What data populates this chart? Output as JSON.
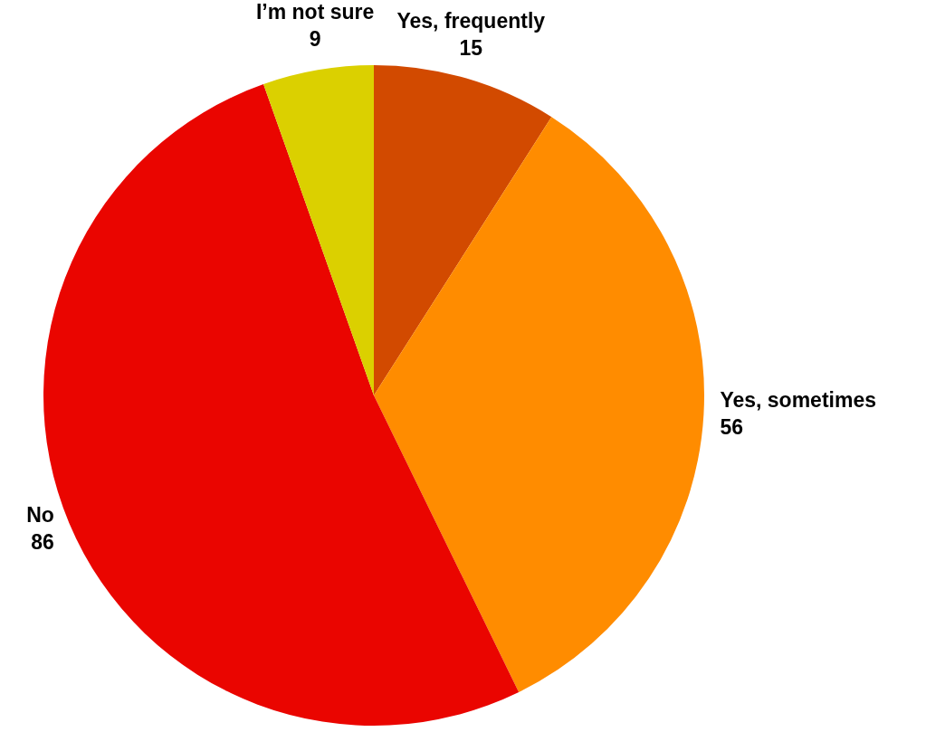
{
  "chart_data": {
    "type": "pie",
    "categories": [
      "Yes, frequently",
      "Yes, sometimes",
      "No",
      "I’m not sure"
    ],
    "values": [
      15,
      56,
      86,
      9
    ],
    "colors": [
      "#d24a00",
      "#ff8c00",
      "#ea0500",
      "#dbd000"
    ],
    "data_labels": true,
    "legend": false
  }
}
